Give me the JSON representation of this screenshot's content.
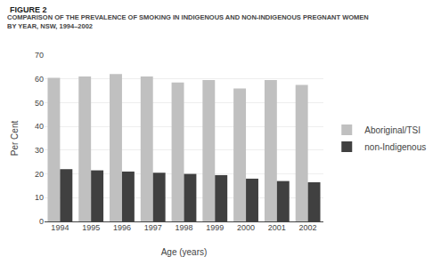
{
  "chart_data": {
    "type": "bar",
    "title": "COMPARISON OF THE PREVALENCE OF SMOKING IN INDIGENOUS AND NON-INDIGENOUS PREGNANT WOMEN\nBY YEAR, NSW, 1994–2002",
    "annotations": [
      "FIGURE 2"
    ],
    "categories": [
      "1994",
      "1995",
      "1996",
      "1997",
      "1998",
      "1999",
      "2000",
      "2001",
      "2002"
    ],
    "series": [
      {
        "name": "Aboriginal/TSI",
        "color": "#c0c0c0",
        "values": [
          60.5,
          61.0,
          62.0,
          61.0,
          58.5,
          59.5,
          56.0,
          59.5,
          57.5
        ]
      },
      {
        "name": "non-Indigenous",
        "color": "#404040",
        "values": [
          22.0,
          21.5,
          21.0,
          20.5,
          20.0,
          19.5,
          18.0,
          17.0,
          16.5
        ]
      }
    ],
    "xlabel": "Age (years)",
    "ylabel": "Per Cent",
    "ylim": [
      0,
      70
    ],
    "yticks": [
      0,
      10,
      20,
      30,
      40,
      50,
      60,
      70
    ],
    "grid": true,
    "legend": "right"
  }
}
